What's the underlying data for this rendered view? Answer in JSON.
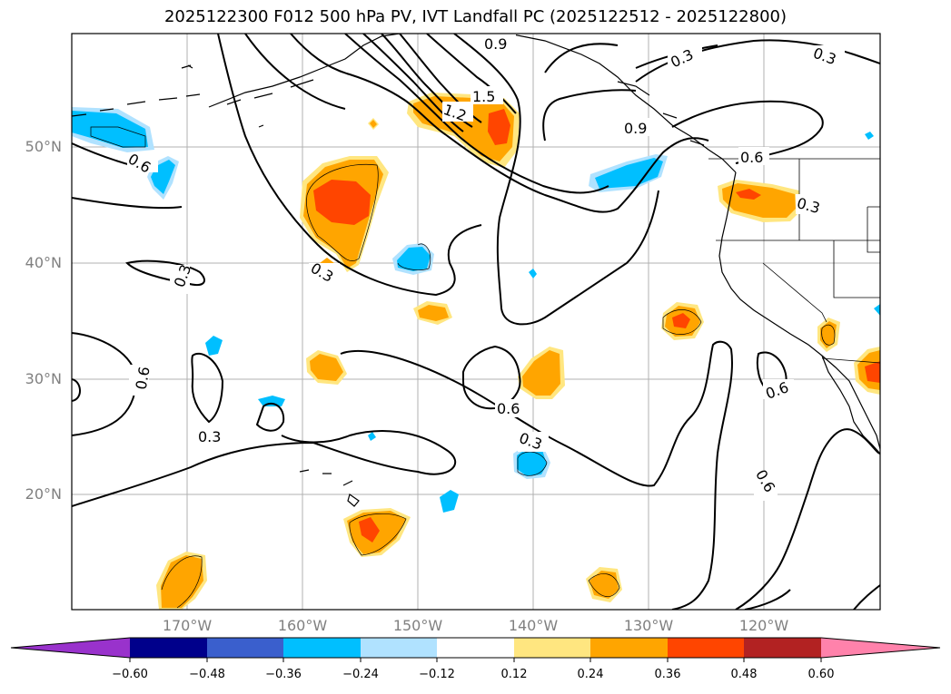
{
  "title": "2025122300 F012 500 hPa PV, IVT Landfall PC (2025122512 - 2025122800)",
  "lat_labels": [
    "50°N",
    "40°N",
    "30°N",
    "20°N"
  ],
  "lon_labels": [
    "170°W",
    "160°W",
    "150°W",
    "140°W",
    "130°W",
    "120°W"
  ],
  "contour_labels": [
    "0.9",
    "0.3",
    "0.3",
    "1.5",
    "1.2",
    "0.9",
    "0.6",
    "0.6",
    "0.3",
    "0.3",
    "0.3",
    "0.6",
    "0.6",
    "0.3",
    "0.3",
    "0.6",
    "0.6"
  ],
  "colorbar": {
    "ticks": [
      "−0.60",
      "−0.48",
      "−0.36",
      "−0.24",
      "−0.12",
      "0.12",
      "0.24",
      "0.36",
      "0.48",
      "0.60"
    ],
    "colors": [
      "#9932cc",
      "#00008b",
      "#3a5fcd",
      "#00bfff",
      "#b0e2ff",
      "#ffffff",
      "#ffe680",
      "#ffa500",
      "#ff4500",
      "#b22222",
      "#ff82ab"
    ]
  },
  "colors": {
    "map_frame": "#000000",
    "grid": "#b0b0b0",
    "axis_label": "#808080",
    "positive_shades": [
      "#ffe680",
      "#ffa500",
      "#ff4500"
    ],
    "negative_shades": [
      "#b0e2ff",
      "#00bfff"
    ]
  }
}
